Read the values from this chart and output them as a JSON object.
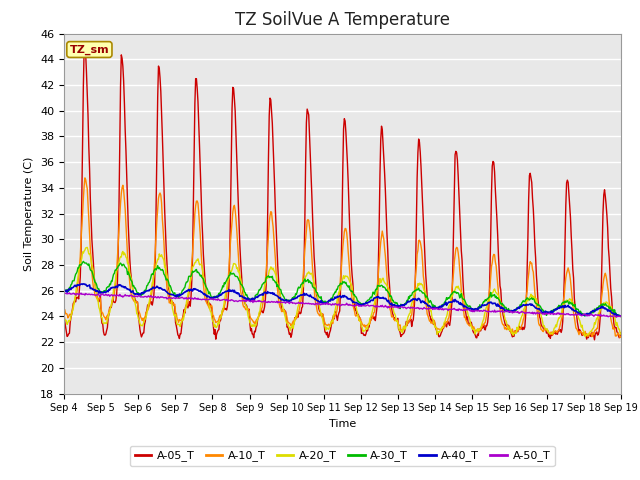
{
  "title": "TZ SoilVue A Temperature",
  "xlabel": "Time",
  "ylabel": "Soil Temperature (C)",
  "ylim": [
    18,
    46
  ],
  "yticks": [
    18,
    20,
    22,
    24,
    26,
    28,
    30,
    32,
    34,
    36,
    38,
    40,
    42,
    44,
    46
  ],
  "x_labels": [
    "Sep 4",
    "Sep 5",
    "Sep 6",
    "Sep 7",
    "Sep 8",
    "Sep 9",
    "Sep 10",
    "Sep 11",
    "Sep 12",
    "Sep 13",
    "Sep 14",
    "Sep 15",
    "Sep 16",
    "Sep 17",
    "Sep 18",
    "Sep 19"
  ],
  "annotation_text": "TZ_sm",
  "series": {
    "A-05_T": {
      "color": "#cc0000",
      "linewidth": 1.0
    },
    "A-10_T": {
      "color": "#ff8800",
      "linewidth": 1.0
    },
    "A-20_T": {
      "color": "#dddd00",
      "linewidth": 1.0
    },
    "A-30_T": {
      "color": "#00bb00",
      "linewidth": 1.0
    },
    "A-40_T": {
      "color": "#0000cc",
      "linewidth": 1.2
    },
    "A-50_T": {
      "color": "#aa00cc",
      "linewidth": 1.0
    }
  },
  "plot_bg": "#e8e8e8",
  "fig_bg": "#ffffff",
  "grid_color": "#ffffff",
  "title_fontsize": 12,
  "n_days": 15,
  "samples_per_day": 48
}
